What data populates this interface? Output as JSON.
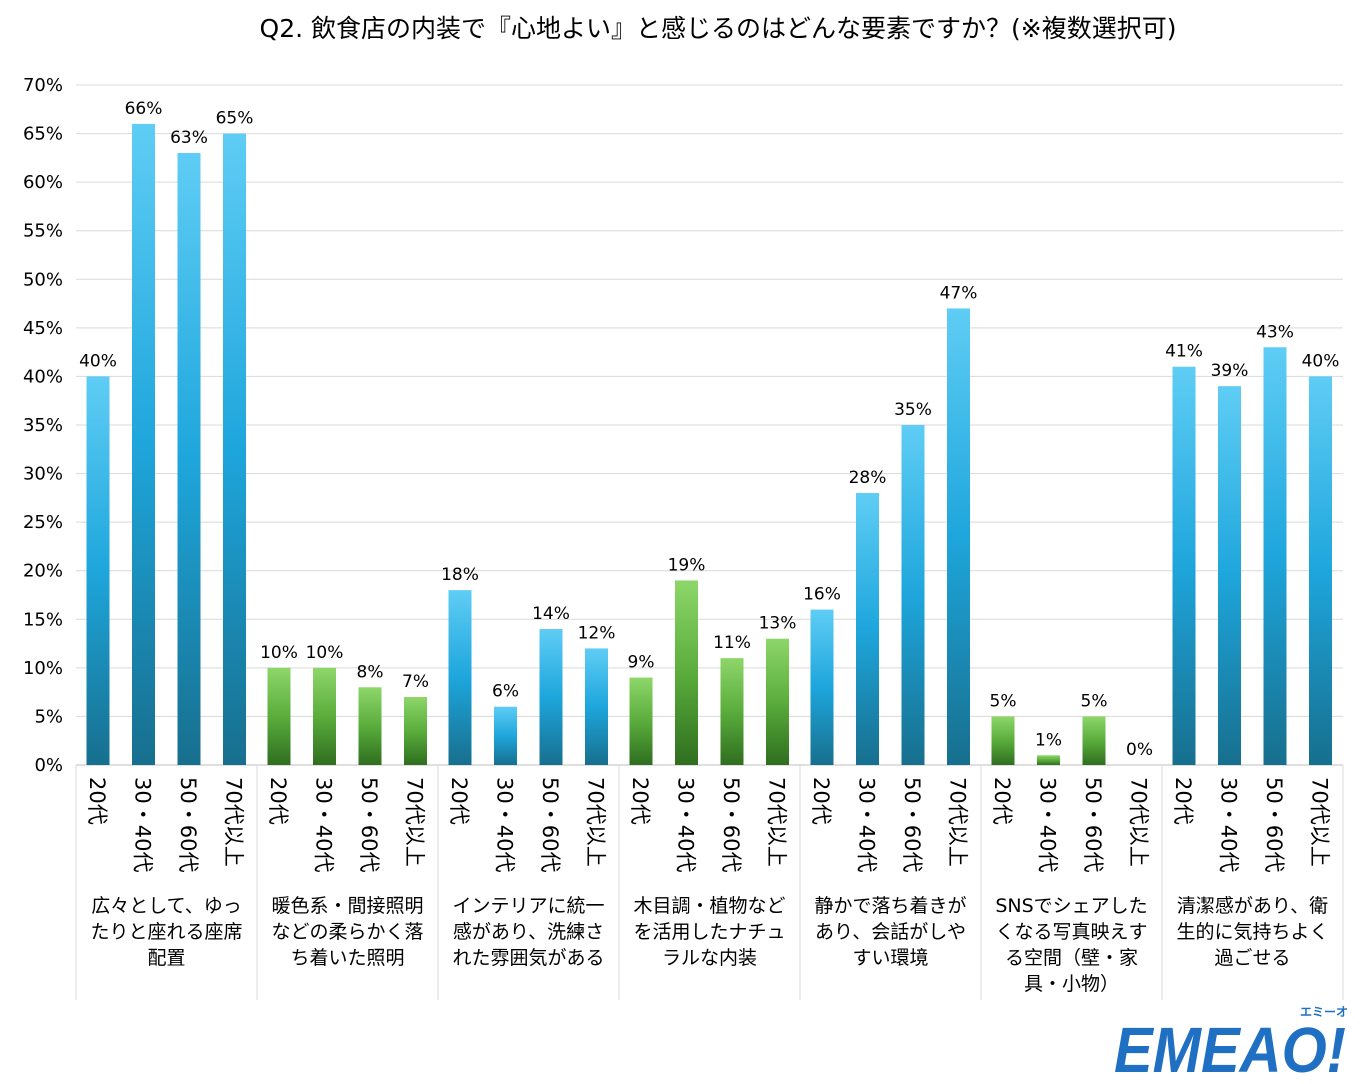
{
  "chart_data": {
    "type": "bar",
    "title": "Q2. 飲食店の内装で『心地よい』と感じるのはどんな要素ですか？(※複数選択可)",
    "ylim": [
      0,
      70
    ],
    "yticks": [
      "0%",
      "5%",
      "10%",
      "15%",
      "20%",
      "25%",
      "30%",
      "35%",
      "40%",
      "45%",
      "50%",
      "55%",
      "60%",
      "65%",
      "70%"
    ],
    "grid": true,
    "value_suffix": "%",
    "subcategories": [
      "20代",
      "30・40代",
      "50・60代",
      "70代以上"
    ],
    "groups": [
      {
        "lines": [
          "広々として、ゆっ",
          "たりと座れる座席",
          "配置"
        ],
        "color": "blue",
        "values": [
          40,
          66,
          63,
          65
        ]
      },
      {
        "lines": [
          "暖色系・間接照明",
          "などの柔らかく落",
          "ち着いた照明"
        ],
        "color": "green",
        "values": [
          10,
          10,
          8,
          7
        ]
      },
      {
        "lines": [
          "インテリアに統一",
          "感があり、洗練さ",
          "れた雰囲気がある"
        ],
        "color": "blue",
        "values": [
          18,
          6,
          14,
          12
        ]
      },
      {
        "lines": [
          "木目調・植物など",
          "を活用したナチュ",
          "ラルな内装"
        ],
        "color": "green",
        "values": [
          9,
          19,
          11,
          13
        ]
      },
      {
        "lines": [
          "静かで落ち着きが",
          "あり、会話がしや",
          "すい環境"
        ],
        "color": "blue",
        "values": [
          16,
          28,
          35,
          47
        ]
      },
      {
        "lines": [
          "SNSでシェアした",
          "くなる写真映えす",
          "る空間（壁・家",
          "具・小物）"
        ],
        "color": "green",
        "values": [
          5,
          1,
          5,
          0
        ]
      },
      {
        "lines": [
          "清潔感があり、衛",
          "生的に気持ちよく",
          "過ごせる"
        ],
        "color": "blue",
        "values": [
          41,
          39,
          43,
          40
        ]
      }
    ],
    "colors": {
      "blue_top": "#5fcdf5",
      "blue_mid": "#1ea6dc",
      "blue_bottom": "#176f8e",
      "green_top": "#8ed66a",
      "green_mid": "#5aad3c",
      "green_bottom": "#2f6e1f",
      "grid": "#d9d9d9",
      "axis": "#bfbfbf"
    }
  },
  "logo": {
    "text": "EMEAO!",
    "kana": "エミーオ",
    "color": "#1f6fc2"
  }
}
